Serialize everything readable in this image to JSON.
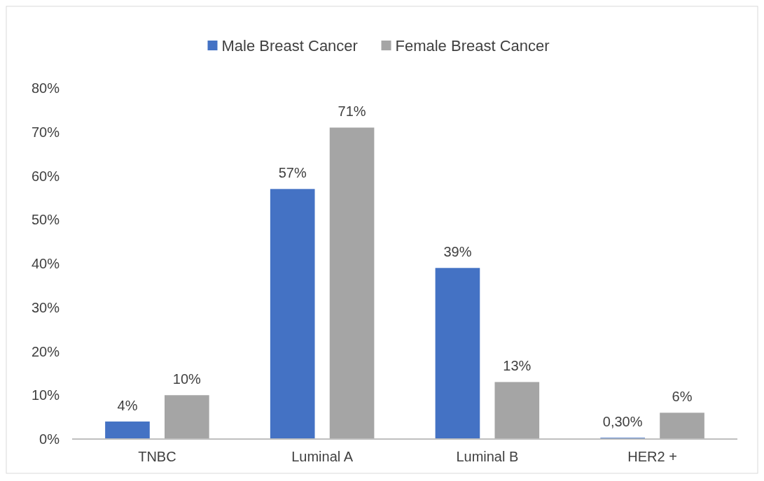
{
  "chart_data": {
    "type": "bar",
    "categories": [
      "TNBC",
      "Luminal A",
      "Luminal B",
      "HER2 +"
    ],
    "series": [
      {
        "name": "Male Breast Cancer",
        "color": "#4472c4",
        "values": [
          4,
          57,
          39,
          0.3
        ],
        "value_labels": [
          "4%",
          "57%",
          "39%",
          "0,30%"
        ]
      },
      {
        "name": "Female Breast Cancer",
        "color": "#a5a5a5",
        "values": [
          10,
          71,
          13,
          6
        ],
        "value_labels": [
          "10%",
          "71%",
          "13%",
          "6%"
        ]
      }
    ],
    "ylim": [
      0,
      80
    ],
    "yticks": [
      {
        "value": 0,
        "label": "0%"
      },
      {
        "value": 10,
        "label": "10%"
      },
      {
        "value": 20,
        "label": "20%"
      },
      {
        "value": 30,
        "label": "30%"
      },
      {
        "value": 40,
        "label": "40%"
      },
      {
        "value": 50,
        "label": "50%"
      },
      {
        "value": 60,
        "label": "60%"
      },
      {
        "value": 70,
        "label": "70%"
      },
      {
        "value": 80,
        "label": "80%"
      }
    ],
    "grid": false,
    "legend": "top"
  }
}
